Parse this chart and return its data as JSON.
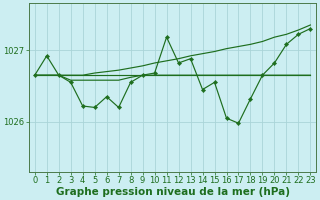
{
  "background_color": "#cceef2",
  "grid_color": "#aad4d8",
  "line_color": "#1e6e1e",
  "marker_color": "#1e6e1e",
  "xlabel": "Graphe pression niveau de la mer (hPa)",
  "xlabel_fontsize": 7.5,
  "tick_fontsize": 6,
  "ylim": [
    1025.3,
    1027.65
  ],
  "xlim": [
    -0.5,
    23.5
  ],
  "xticks": [
    0,
    1,
    2,
    3,
    4,
    5,
    6,
    7,
    8,
    9,
    10,
    11,
    12,
    13,
    14,
    15,
    16,
    17,
    18,
    19,
    20,
    21,
    22,
    23
  ],
  "ytick_positions": [
    1026.0,
    1027.0
  ],
  "ytick_labels": [
    "1026",
    "1027"
  ],
  "lw": 0.85,
  "ms": 2.2,
  "series1_y": [
    1026.65,
    1026.65,
    1026.65,
    1026.65,
    1026.65,
    1026.65,
    1026.65,
    1026.65,
    1026.65,
    1026.65,
    1026.65,
    1026.65,
    1026.65,
    1026.65,
    1026.65,
    1026.65,
    1026.65,
    1026.65,
    1026.65,
    1026.65,
    1026.65,
    1026.65,
    1026.65,
    1026.65
  ],
  "series2_y": [
    1026.65,
    1026.92,
    1026.65,
    1026.55,
    1026.22,
    1026.2,
    1026.35,
    1026.2,
    1026.55,
    1026.65,
    1026.68,
    1027.18,
    1026.82,
    1026.88,
    1026.45,
    1026.55,
    1026.05,
    1025.98,
    1026.32,
    1026.65,
    1026.82,
    1027.08,
    1027.22,
    1027.3
  ],
  "series3_y": [
    1026.65,
    1026.65,
    1026.65,
    1026.58,
    1026.58,
    1026.58,
    1026.58,
    1026.58,
    1026.62,
    1026.65,
    1026.65,
    1026.65,
    1026.65,
    1026.65,
    1026.65,
    1026.65,
    1026.65,
    1026.65,
    1026.65,
    1026.65,
    1026.65,
    1026.65,
    1026.65,
    1026.65
  ],
  "series4_y": [
    1026.65,
    1026.65,
    1026.65,
    1026.65,
    1026.65,
    1026.68,
    1026.7,
    1026.72,
    1026.75,
    1026.78,
    1026.82,
    1026.85,
    1026.88,
    1026.92,
    1026.95,
    1026.98,
    1027.02,
    1027.05,
    1027.08,
    1027.12,
    1027.18,
    1027.22,
    1027.28,
    1027.35
  ]
}
